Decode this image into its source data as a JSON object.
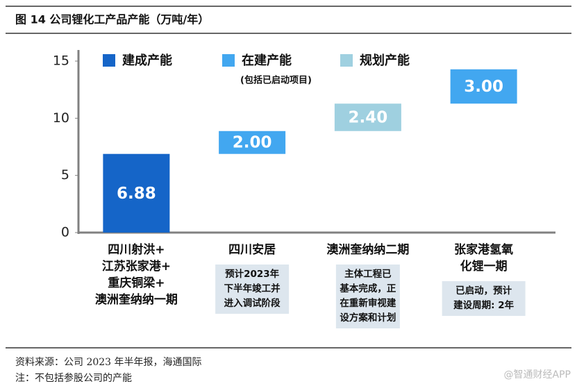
{
  "chart_data": {
    "type": "waterfall",
    "title": "图 14 公司锂化工产品产能（万吨/年）",
    "categories": [
      [
        "四川射洪+",
        "江苏张家港+",
        "重庆铜梁+",
        "澳洲奎纳纳一期"
      ],
      [
        "四川安居"
      ],
      [
        "澳洲奎纳纳二期"
      ],
      [
        "张家港氢氧",
        "化锂一期"
      ]
    ],
    "notes": [
      null,
      [
        "预计2023年",
        "下半年竣工并",
        "进入调试阶段"
      ],
      [
        "主体工程已",
        "基本完成，正",
        "在重新审视建",
        "设方案和计划"
      ],
      [
        "已启动，预计",
        "建设周期: 2年"
      ]
    ],
    "series": [
      {
        "name": "建成产能",
        "color": "#1565c8",
        "values": [
          6.88,
          null,
          null,
          null
        ],
        "value_labels": [
          "6.88",
          null,
          null,
          null
        ]
      },
      {
        "name": "在建产能",
        "subname": "(包括已启动项目)",
        "color": "#42a7f0",
        "values": [
          null,
          2.0,
          null,
          3.0
        ],
        "value_labels": [
          null,
          "2.00",
          null,
          "3.00"
        ]
      },
      {
        "name": "规划产能",
        "color": "#9fd0e0",
        "values": [
          null,
          null,
          2.4,
          null
        ],
        "value_labels": [
          null,
          null,
          "2.40",
          null
        ]
      }
    ],
    "ylim": [
      0,
      15
    ],
    "yticks": [
      0,
      5,
      10,
      15
    ],
    "source": "资料来源：公司 2023 年半年报，海通国际",
    "note": "注：不包括参股公司的产能",
    "watermark": "@智通财经APP"
  }
}
